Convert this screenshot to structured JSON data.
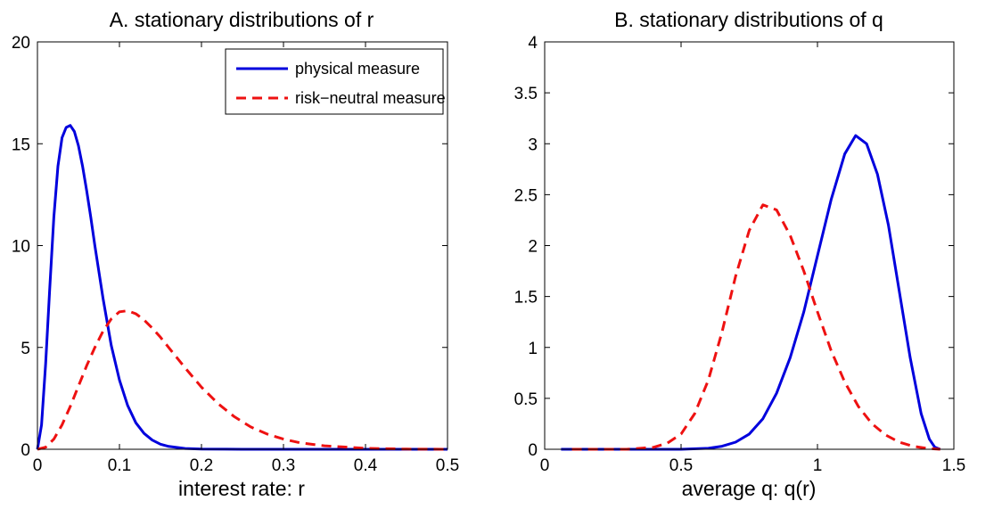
{
  "colors": {
    "physical": "#0000dd",
    "risk_neutral": "#ee1111",
    "axes": "#000000",
    "background": "#ffffff"
  },
  "legend": {
    "entries": [
      "physical measure",
      "risk−neutral measure"
    ],
    "placement": "top-right of panel A"
  },
  "chart_data": [
    {
      "type": "line",
      "title": "A. stationary distributions of r",
      "xlabel": "interest rate: r",
      "ylabel": "",
      "xlim": [
        0,
        0.5
      ],
      "ylim": [
        0,
        20
      ],
      "xticks": [
        "0",
        "0.1",
        "0.2",
        "0.3",
        "0.4",
        "0.5"
      ],
      "yticks": [
        "0",
        "5",
        "10",
        "15",
        "20"
      ],
      "grid": false,
      "series": [
        {
          "name": "physical measure",
          "style": "solid",
          "x": [
            0,
            0.005,
            0.01,
            0.015,
            0.02,
            0.025,
            0.03,
            0.035,
            0.04,
            0.045,
            0.05,
            0.055,
            0.06,
            0.065,
            0.07,
            0.075,
            0.08,
            0.09,
            0.1,
            0.11,
            0.12,
            0.13,
            0.14,
            0.15,
            0.16,
            0.18,
            0.2,
            0.25,
            0.3,
            0.4,
            0.5
          ],
          "y": [
            0,
            1.2,
            4.2,
            7.9,
            11.4,
            13.9,
            15.3,
            15.8,
            15.9,
            15.6,
            14.9,
            13.9,
            12.7,
            11.4,
            10.0,
            8.7,
            7.4,
            5.1,
            3.4,
            2.15,
            1.3,
            0.78,
            0.45,
            0.25,
            0.14,
            0.04,
            0.01,
            0,
            0,
            0,
            0
          ]
        },
        {
          "name": "risk−neutral measure",
          "style": "dashed",
          "x": [
            0,
            0.01,
            0.02,
            0.03,
            0.04,
            0.05,
            0.06,
            0.07,
            0.08,
            0.09,
            0.1,
            0.11,
            0.12,
            0.13,
            0.14,
            0.15,
            0.16,
            0.17,
            0.18,
            0.2,
            0.22,
            0.24,
            0.26,
            0.28,
            0.3,
            0.32,
            0.35,
            0.4,
            0.45,
            0.5
          ],
          "y": [
            0,
            0.1,
            0.5,
            1.2,
            2.1,
            3.1,
            4.1,
            5.0,
            5.8,
            6.4,
            6.75,
            6.8,
            6.65,
            6.35,
            5.95,
            5.5,
            5.0,
            4.5,
            4.0,
            3.05,
            2.25,
            1.6,
            1.1,
            0.75,
            0.5,
            0.32,
            0.17,
            0.05,
            0.01,
            0
          ]
        }
      ]
    },
    {
      "type": "line",
      "title": "B. stationary distributions of q",
      "xlabel": "average q: q(r)",
      "ylabel": "",
      "xlim": [
        0,
        1.5
      ],
      "ylim": [
        0,
        4
      ],
      "xticks": [
        "0",
        "0.5",
        "1",
        "1.5"
      ],
      "yticks": [
        "0",
        "0.5",
        "1",
        "1.5",
        "2",
        "2.5",
        "3",
        "3.5",
        "4"
      ],
      "grid": false,
      "series": [
        {
          "name": "physical measure",
          "style": "solid",
          "x": [
            0.06,
            0.5,
            0.6,
            0.65,
            0.7,
            0.75,
            0.8,
            0.85,
            0.9,
            0.95,
            1.0,
            1.05,
            1.1,
            1.14,
            1.18,
            1.22,
            1.26,
            1.3,
            1.34,
            1.38,
            1.41,
            1.43,
            1.45
          ],
          "y": [
            0,
            0,
            0.01,
            0.03,
            0.07,
            0.15,
            0.3,
            0.55,
            0.9,
            1.35,
            1.9,
            2.45,
            2.9,
            3.08,
            3.0,
            2.7,
            2.2,
            1.55,
            0.9,
            0.35,
            0.1,
            0.02,
            0
          ]
        },
        {
          "name": "risk−neutral measure",
          "style": "dashed",
          "x": [
            0.1,
            0.3,
            0.4,
            0.45,
            0.5,
            0.55,
            0.6,
            0.65,
            0.7,
            0.75,
            0.8,
            0.85,
            0.9,
            0.95,
            1.0,
            1.05,
            1.1,
            1.15,
            1.2,
            1.25,
            1.3,
            1.35,
            1.4,
            1.45
          ],
          "y": [
            0,
            0,
            0.02,
            0.06,
            0.15,
            0.35,
            0.68,
            1.15,
            1.7,
            2.15,
            2.4,
            2.35,
            2.1,
            1.75,
            1.35,
            0.97,
            0.66,
            0.42,
            0.25,
            0.14,
            0.07,
            0.03,
            0.01,
            0
          ]
        }
      ]
    }
  ]
}
